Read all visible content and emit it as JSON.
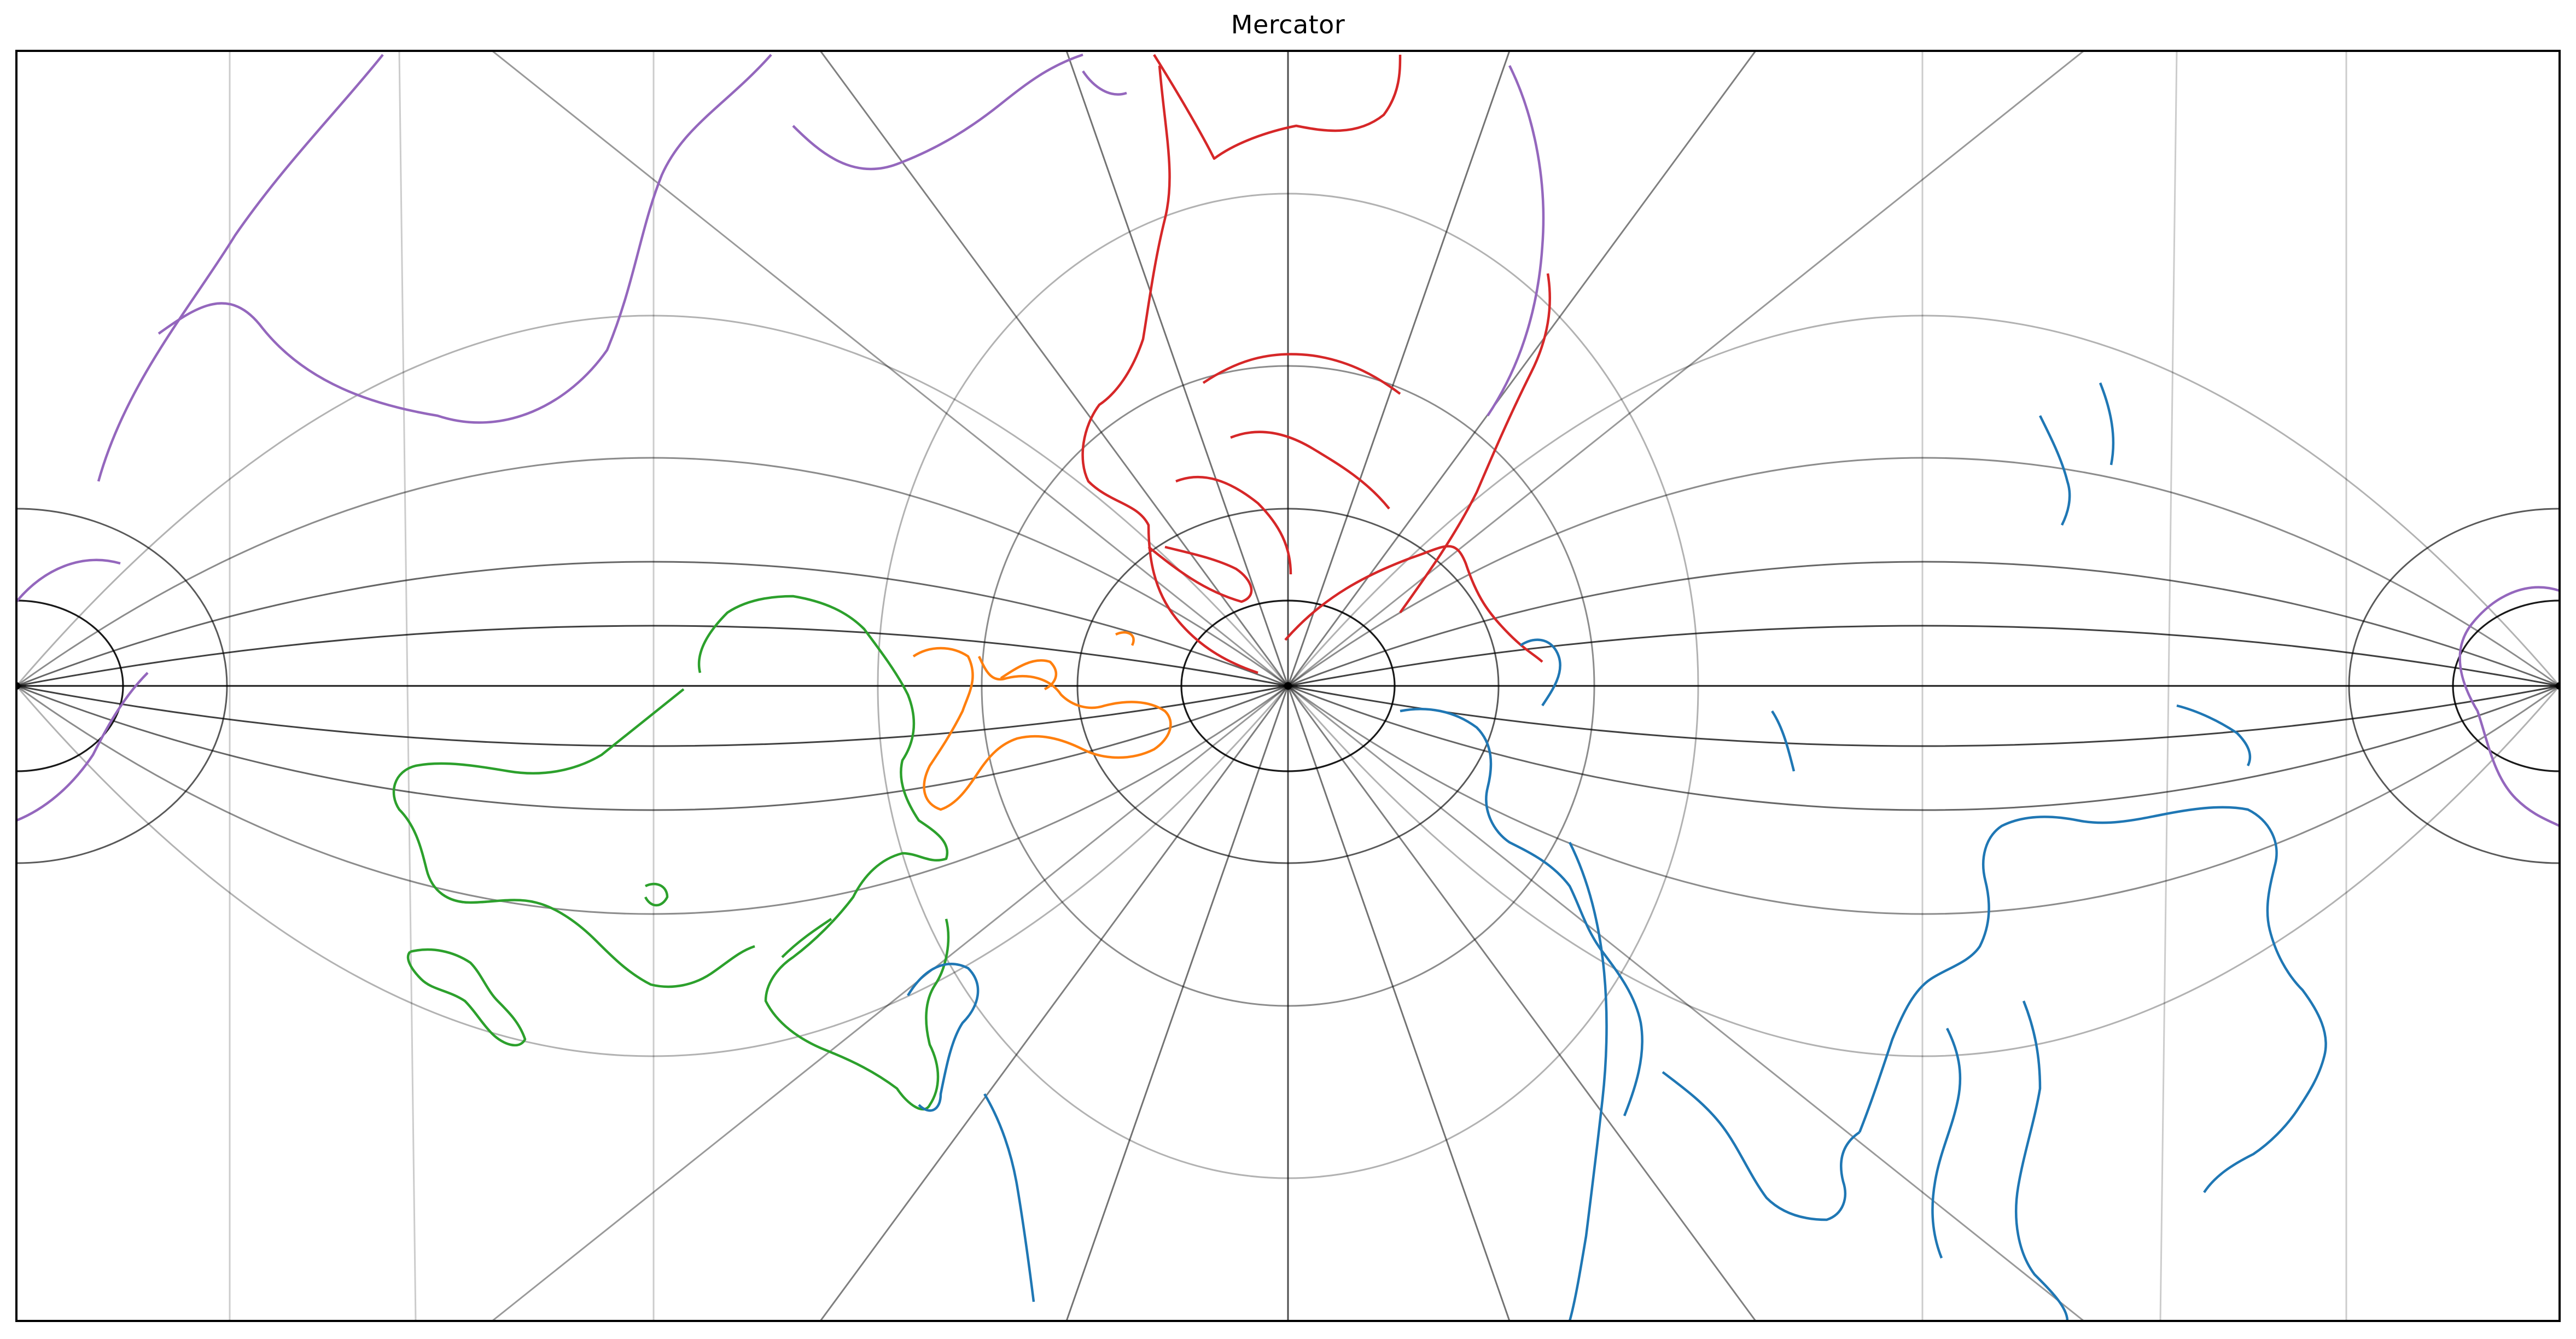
{
  "title": "Mercator",
  "graticule": {
    "color": "#000000"
  },
  "colors": {
    "purple": "#9467bd",
    "red": "#d62728",
    "orange": "#ff7f0e",
    "green": "#2ca02c",
    "blue": "#1f77b4"
  },
  "icons": {
    "pole": "pole-marker-icon"
  }
}
